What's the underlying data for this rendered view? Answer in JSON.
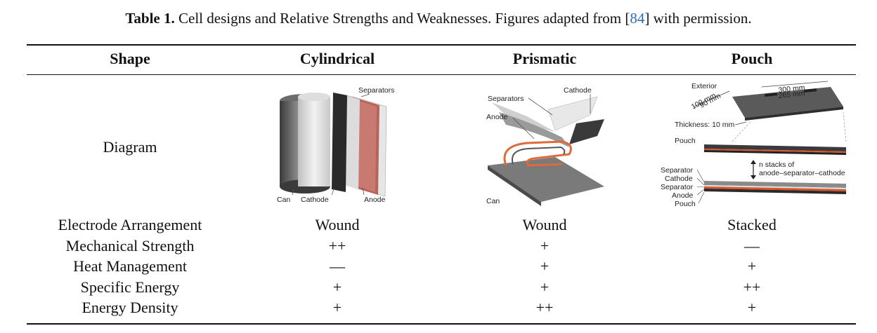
{
  "caption": {
    "label": "Table 1.",
    "text_before": " Cell designs and Relative Strengths and Weaknesses. Figures adapted from [",
    "ref": "84",
    "text_after": "] with permission."
  },
  "headers": [
    "Shape",
    "Cylindrical",
    "Prismatic",
    "Pouch"
  ],
  "diagram_row_label": "Diagram",
  "diagrams": {
    "cylindrical": {
      "labels": [
        "Separators",
        "Can",
        "Cathode",
        "Anode"
      ]
    },
    "prismatic": {
      "labels": [
        "Separators",
        "Cathode",
        "Anode",
        "Can"
      ]
    },
    "pouch": {
      "labels": [
        "Exterior",
        "300 mm",
        "265 mm",
        "100 mm",
        "90 mm",
        "Thickness: 10 mm",
        "Pouch",
        "n stacks of",
        "anode–separator–cathode",
        "Separator",
        "Cathode",
        "Separator",
        "Anode",
        "Pouch"
      ]
    }
  },
  "rows": [
    {
      "label": "Electrode Arrangement",
      "values": [
        "Wound",
        "Wound",
        "Stacked"
      ]
    },
    {
      "label": "Mechanical Strength",
      "values": [
        "++",
        "+",
        "—"
      ]
    },
    {
      "label": "Heat Management",
      "values": [
        "—",
        "+",
        "+"
      ]
    },
    {
      "label": "Specific Energy",
      "values": [
        "+",
        "+",
        "++"
      ]
    },
    {
      "label": "Energy Density",
      "values": [
        "+",
        "++",
        "+"
      ]
    }
  ],
  "colors": {
    "accent_link": "#2a6db5",
    "electrode_orange": "#d9532a"
  }
}
